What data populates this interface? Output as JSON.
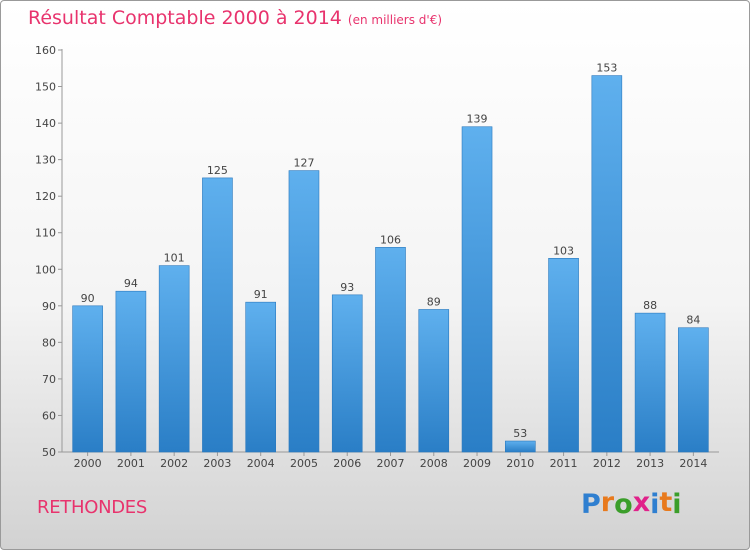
{
  "title": "Résultat Comptable 2000 à 2014",
  "subtitle": "(en milliers d'€)",
  "town": "RETHONDES",
  "logo": {
    "letters": [
      "P",
      "r",
      "o",
      "x",
      "i",
      "t",
      "i"
    ],
    "colors": [
      "#2f7fd0",
      "#e87a1d",
      "#3b9e2a",
      "#e0218a",
      "#2f7fd0",
      "#e87a1d",
      "#3b9e2a"
    ]
  },
  "colors": {
    "accent": "#e8336d",
    "bar_light": "#5fb0ee",
    "bar_dark": "#2a7ec6"
  },
  "chart_data": {
    "type": "bar",
    "title": "Résultat Comptable 2000 à 2014",
    "xlabel": "",
    "ylabel": "",
    "categories": [
      "2000",
      "2001",
      "2002",
      "2003",
      "2004",
      "2005",
      "2006",
      "2007",
      "2008",
      "2009",
      "2010",
      "2011",
      "2012",
      "2013",
      "2014"
    ],
    "values": [
      90,
      94,
      101,
      125,
      91,
      127,
      93,
      106,
      89,
      139,
      53,
      103,
      153,
      88,
      84
    ],
    "ylim": [
      50,
      160
    ],
    "yticks": [
      50,
      60,
      70,
      80,
      90,
      100,
      110,
      120,
      130,
      140,
      150,
      160
    ],
    "grid": false
  }
}
